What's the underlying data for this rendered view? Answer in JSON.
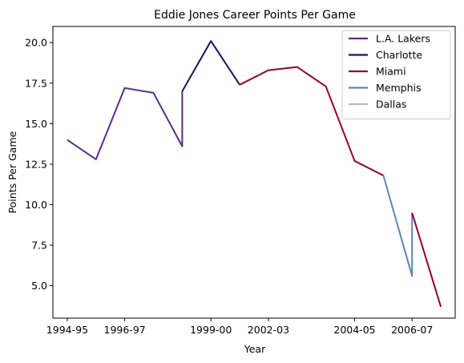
{
  "chart_data": {
    "type": "line",
    "title": "Eddie Jones  Career Points Per Game",
    "xlabel": "Year",
    "ylabel": "Points Per Game",
    "xlim": [
      -0.5,
      13.5
    ],
    "ylim": [
      3.0,
      21.0
    ],
    "grid": false,
    "legend_position": "top-right",
    "x_ticks": [
      {
        "pos": 0,
        "label": "1994-95"
      },
      {
        "pos": 2,
        "label": "1996-97"
      },
      {
        "pos": 5,
        "label": "1999-00"
      },
      {
        "pos": 7,
        "label": "2002-03"
      },
      {
        "pos": 10,
        "label": "2004-05"
      },
      {
        "pos": 12,
        "label": "2006-07"
      }
    ],
    "y_ticks": [
      5.0,
      7.5,
      10.0,
      12.5,
      15.0,
      17.5,
      20.0
    ],
    "series": [
      {
        "name": "L.A. Lakers",
        "color": "#5a2d8a",
        "points": [
          [
            0,
            14.0
          ],
          [
            1,
            12.8
          ],
          [
            2,
            17.2
          ],
          [
            3,
            16.9
          ],
          [
            4,
            13.6
          ],
          [
            4,
            17.0
          ]
        ]
      },
      {
        "name": "Charlotte",
        "color": "#1d1160",
        "points": [
          [
            4,
            17.0
          ],
          [
            5,
            20.1
          ],
          [
            6,
            17.4
          ]
        ]
      },
      {
        "name": "Miami",
        "color": "#98002e",
        "points": [
          [
            6,
            17.4
          ],
          [
            7,
            18.3
          ],
          [
            8,
            18.5
          ],
          [
            9,
            17.3
          ],
          [
            10,
            12.7
          ],
          [
            11,
            11.8
          ]
        ]
      },
      {
        "name": "Memphis",
        "color": "#5d87b8",
        "points": [
          [
            11,
            11.8
          ],
          [
            12,
            5.6
          ],
          [
            12,
            9.5
          ]
        ]
      },
      {
        "name": "Dallas",
        "color": "#bbbbbb",
        "points": []
      },
      {
        "name": "",
        "color": "#98002e",
        "points": [
          [
            12,
            9.5
          ],
          [
            13,
            3.7
          ]
        ]
      }
    ]
  }
}
